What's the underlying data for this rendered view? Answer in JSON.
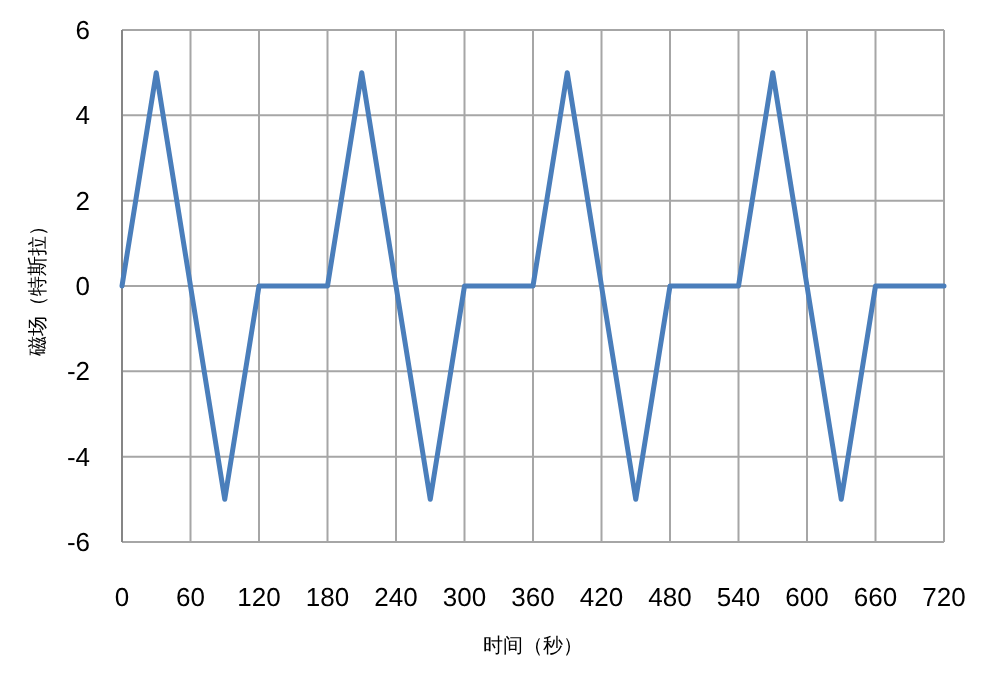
{
  "chart_data": {
    "type": "line",
    "xlabel": "时间（秒）",
    "ylabel": "磁场（特斯拉）",
    "x": [
      0,
      30,
      90,
      120,
      180,
      210,
      270,
      300,
      360,
      390,
      450,
      480,
      540,
      570,
      630,
      660,
      720
    ],
    "series": [
      {
        "color": "#4a7ebb",
        "values": [
          0,
          5,
          -5,
          0,
          0,
          5,
          -5,
          0,
          0,
          5,
          -5,
          0,
          0,
          5,
          -5,
          0,
          0
        ]
      }
    ],
    "xlim": [
      0,
      720
    ],
    "ylim": [
      -6,
      6
    ],
    "xticks": [
      0,
      60,
      120,
      180,
      240,
      300,
      360,
      420,
      480,
      540,
      600,
      660,
      720
    ],
    "yticks": [
      -6,
      -4,
      -2,
      0,
      2,
      4,
      6
    ],
    "grid": true,
    "marker": "none",
    "line_style": "solid"
  }
}
